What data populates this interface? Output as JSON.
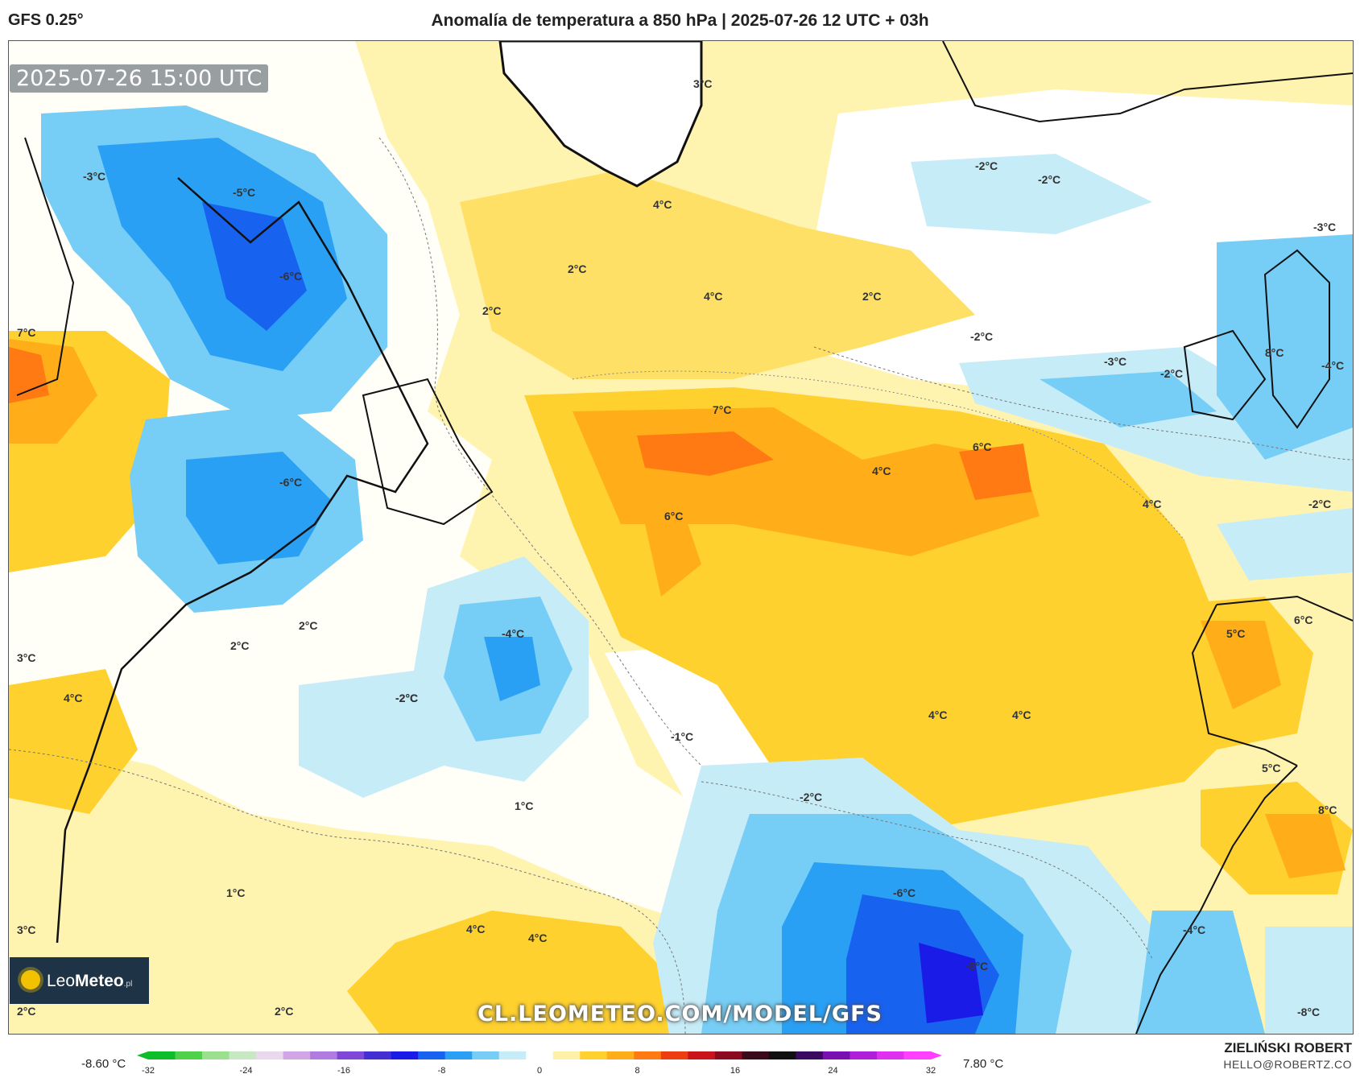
{
  "header": {
    "model": "GFS 0.25°",
    "title": "Anomalía de temperatura a 850 hPa | 2025-07-26 12 UTC + 03h"
  },
  "map": {
    "timestamp": "2025-07-26 15:00 UTC",
    "watermark": "CL.LEOMETEO.COM/MODEL/GFS",
    "logo": {
      "text_light": "Leo",
      "text_bold": "Meteo",
      "tld": ".pl"
    },
    "labels": [
      "-3°C",
      "-5°C",
      "-6°C",
      "7°C",
      "-6°C",
      "2°C",
      "3°C",
      "4°C",
      "2°C",
      "-2°C",
      "3°C",
      "1°C",
      "4°C",
      "4°C",
      "2°C",
      "2°C",
      "-4°C",
      "-2°C",
      "1°C",
      "2°C",
      "4°C",
      "4°C",
      "6°C",
      "7°C",
      "6°C",
      "-1°C",
      "-2°C",
      "-6°C",
      "-8°C",
      "2°C",
      "4°C",
      "2°C",
      "-2°C",
      "-2°C",
      "-2°C",
      "-3°C",
      "-2°C",
      "4°C",
      "4°C",
      "4°C",
      "5°C",
      "5°C",
      "8°C",
      "-4°C",
      "-8°C",
      "-3°C",
      "8°C",
      "-4°C",
      "-2°C",
      "6°C",
      "3°C"
    ]
  },
  "colorbar": {
    "min_label": "-8.60 °C",
    "max_label": "7.80 °C",
    "ticks": [
      "-32",
      "-24",
      "-16",
      "-8",
      "0",
      "8",
      "16",
      "24",
      "32"
    ],
    "colors": [
      "#0ebd2a",
      "#4fd24a",
      "#9be08f",
      "#c7e8c2",
      "#ead8ef",
      "#d2a6e6",
      "#b07ce0",
      "#8048d6",
      "#4430d2",
      "#1b1be8",
      "#1862f0",
      "#2aa0f5",
      "#76cdf5",
      "#c6ecf8",
      "#ffffff",
      "#fff1a8",
      "#ffd12e",
      "#ffae1a",
      "#ff7a12",
      "#ee3d10",
      "#c8141a",
      "#8a0a20",
      "#3a0a18",
      "#101010",
      "#3a0a60",
      "#7a10b0",
      "#b020d8",
      "#e030f0",
      "#ff40ff"
    ]
  },
  "credits": {
    "author": "ZIELIŃSKI ROBERT",
    "email": "HELLO@ROBERTZ.CO"
  }
}
